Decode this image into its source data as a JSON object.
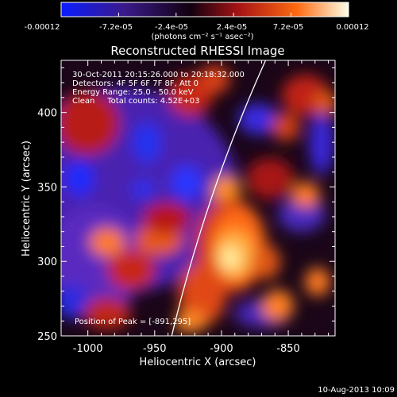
{
  "colorbar": {
    "tick_labels": [
      "-0.00012",
      "-7.2e-05",
      "-2.4e-05",
      "2.4e-05",
      "7.2e-05",
      "0.00012"
    ],
    "unit_label": "(photons cm⁻² s⁻¹ asec⁻²)",
    "colors": [
      "#0a1cff",
      "#3a1a8a",
      "#120010",
      "#a81414",
      "#ff6a10",
      "#ffffe8"
    ]
  },
  "chart_data": {
    "type": "heatmap",
    "title": "Reconstructed RHESSI Image",
    "xlabel": "Heliocentric X (arcsec)",
    "ylabel": "Heliocentric Y (arcsec)",
    "xlim": [
      -1020,
      -815
    ],
    "ylim": [
      250,
      435
    ],
    "x_ticks": [
      -1000,
      -950,
      -900,
      -850
    ],
    "y_ticks": [
      250,
      300,
      350,
      400
    ],
    "annotations": [
      "30-Oct-2011 20:15:26.000 to 20:18:32.000",
      "Detectors: 4F 5F 6F 7F 8F, Att 0",
      "Energy Range: 25.0 - 50.0 keV",
      "Clean     Total counts: 4.52E+03"
    ],
    "peak_label": "Position of Peak = [-891,295]",
    "peak": [
      -891,
      295
    ],
    "limb": {
      "description": "solar limb",
      "color": "#ffffff"
    }
  },
  "footer": {
    "date_stamp": "10-Aug-2013 10:09"
  }
}
